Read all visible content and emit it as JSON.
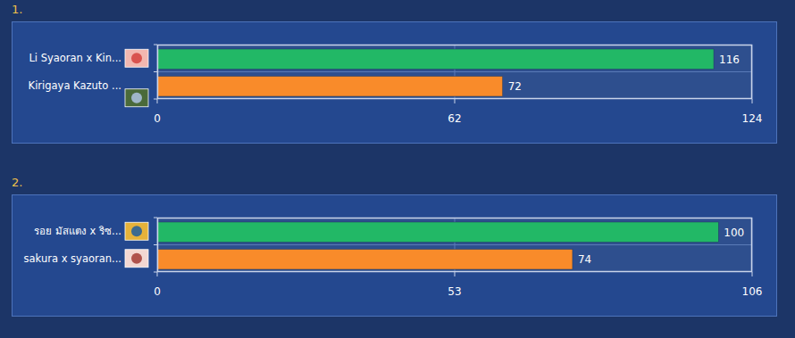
{
  "chart_data": [
    {
      "type": "bar",
      "title": "1.",
      "orientation": "horizontal",
      "categories": [
        "Li Syaoran x Kin...",
        "Kirigaya Kazuto ..."
      ],
      "values": [
        116,
        72
      ],
      "colors": [
        "#22b866",
        "#f98b2a"
      ],
      "xlim": [
        0,
        124
      ],
      "xticks": [
        0,
        62,
        124
      ],
      "grid": true,
      "data_labels": true
    },
    {
      "type": "bar",
      "title": "2.",
      "orientation": "horizontal",
      "categories": [
        "รอย มัสแตง x ริซ...",
        "sakura x syaoran..."
      ],
      "values": [
        100,
        74
      ],
      "colors": [
        "#22b866",
        "#f98b2a"
      ],
      "xlim": [
        0,
        106
      ],
      "xticks": [
        0,
        53,
        106
      ],
      "grid": true,
      "data_labels": true
    }
  ]
}
